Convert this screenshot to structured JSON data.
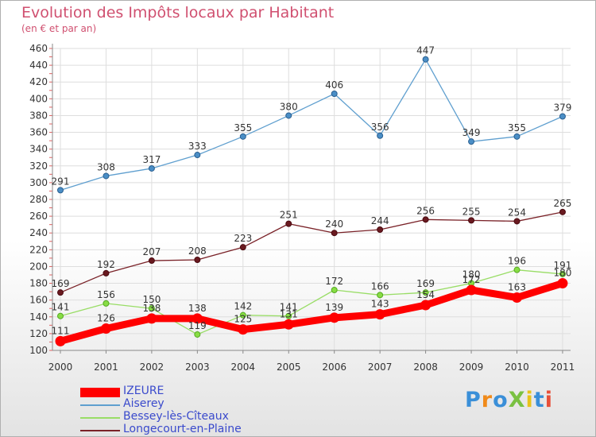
{
  "title": "Evolution des Impôts locaux par Habitant",
  "subtitle": "(en € et par an)",
  "brand": "ProXiti",
  "chart_data": {
    "type": "line",
    "title": "Evolution des Impôts locaux par Habitant",
    "subtitle": "(en € et par an)",
    "x": [
      "2000",
      "2001",
      "2002",
      "2003",
      "2004",
      "2005",
      "2006",
      "2007",
      "2008",
      "2009",
      "2010",
      "2011"
    ],
    "ylim": [
      100,
      460
    ],
    "yticks": [
      100,
      120,
      140,
      160,
      180,
      200,
      220,
      240,
      260,
      280,
      300,
      320,
      340,
      360,
      380,
      400,
      420,
      440,
      460
    ],
    "grid": true,
    "legend_position": "bottom-left",
    "series": [
      {
        "name": "IZEURE",
        "color": "#ff0000",
        "values": [
          111,
          126,
          138,
          138,
          125,
          131,
          139,
          143,
          154,
          172,
          163,
          180
        ]
      },
      {
        "name": "Aiserey",
        "color": "#5f9fcf",
        "values": [
          291,
          308,
          317,
          333,
          355,
          380,
          406,
          356,
          447,
          349,
          355,
          379
        ]
      },
      {
        "name": "Bessey-lès-Cîteaux",
        "color": "#99dd66",
        "values": [
          141,
          156,
          150,
          119,
          142,
          141,
          172,
          166,
          169,
          180,
          196,
          191
        ]
      },
      {
        "name": "Longecourt-en-Plaine",
        "color": "#7a2228",
        "values": [
          169,
          192,
          207,
          208,
          223,
          251,
          240,
          244,
          256,
          255,
          254,
          265
        ]
      }
    ]
  }
}
